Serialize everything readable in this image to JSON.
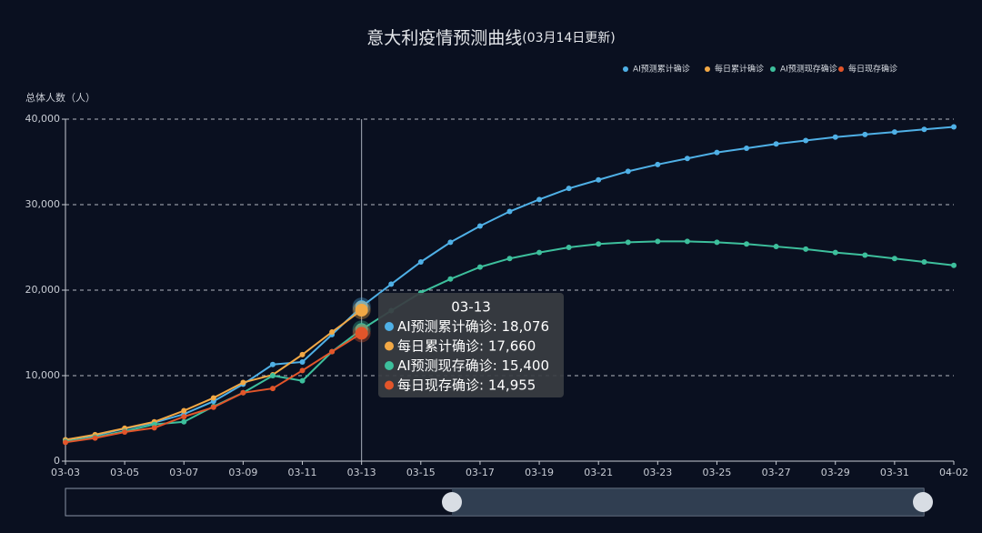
{
  "chart_data": {
    "type": "line",
    "title": "意大利疫情预测曲线",
    "subtitle": "(03月14日更新)",
    "y_label": "总体人数（人）",
    "categories": [
      "03-03",
      null,
      "03-05",
      null,
      "03-07",
      null,
      "03-09",
      null,
      "03-11",
      null,
      "03-13",
      null,
      "03-15",
      null,
      "03-17",
      null,
      "03-19",
      null,
      "03-21",
      null,
      "03-23",
      null,
      "03-25",
      null,
      "03-27",
      null,
      "03-29",
      null,
      "03-31",
      null,
      "04-02"
    ],
    "ylim": [
      0,
      40000
    ],
    "yticks": [
      0,
      {
        "value": 10000,
        "label": "10,000"
      },
      {
        "value": 20000,
        "label": "20,000"
      },
      {
        "value": 30000,
        "label": "30,000"
      },
      {
        "value": 40000,
        "label": "40,000"
      }
    ],
    "grid": true,
    "legend": "top-right",
    "series": [
      {
        "name": "AI预测累计确诊",
        "color": "#4fb0e6",
        "values": [
          2500,
          3000,
          3800,
          4500,
          5500,
          7000,
          9000,
          11300,
          11600,
          14800,
          18076,
          20700,
          23300,
          25600,
          27500,
          29200,
          30600,
          31900,
          32900,
          33900,
          34700,
          35400,
          36100,
          36600,
          37100,
          37500,
          37900,
          38200,
          38500,
          38800,
          39100
        ],
        "value_labels": [
          null,
          null,
          null,
          null,
          null,
          null,
          null,
          null,
          null,
          null,
          "18,076",
          null,
          null,
          null,
          null,
          null,
          null,
          null,
          null,
          null,
          null,
          null,
          null,
          null,
          null,
          null,
          null,
          null,
          null,
          null,
          null
        ]
      },
      {
        "name": "每日累计确诊",
        "color": "#f2a845",
        "values": [
          2500,
          3100,
          3850,
          4600,
          5900,
          7400,
          9200,
          10100,
          12460,
          15100,
          17660,
          null,
          null,
          null,
          null,
          null,
          null,
          null,
          null,
          null,
          null,
          null,
          null,
          null,
          null,
          null,
          null,
          null,
          null,
          null,
          null
        ],
        "value_labels": [
          null,
          null,
          null,
          null,
          null,
          null,
          null,
          null,
          null,
          null,
          "17,660",
          null,
          null,
          null,
          null,
          null,
          null,
          null,
          null,
          null,
          null,
          null,
          null,
          null,
          null,
          null,
          null,
          null,
          null,
          null,
          null
        ]
      },
      {
        "name": "AI预测现存确诊",
        "color": "#3dbf9c",
        "values": [
          2300,
          2800,
          3500,
          4300,
          4600,
          6400,
          8000,
          10000,
          9400,
          12800,
          15400,
          17600,
          19700,
          21300,
          22700,
          23700,
          24400,
          25000,
          25400,
          25600,
          25700,
          25700,
          25600,
          25400,
          25100,
          24800,
          24400,
          24100,
          23700,
          23300,
          22900
        ],
        "value_labels": [
          null,
          null,
          null,
          null,
          null,
          null,
          null,
          null,
          null,
          null,
          "15,400",
          null,
          null,
          null,
          null,
          null,
          null,
          null,
          null,
          null,
          null,
          null,
          null,
          null,
          null,
          null,
          null,
          null,
          null,
          null,
          null
        ]
      },
      {
        "name": "每日现存确诊",
        "color": "#e2552a",
        "values": [
          2200,
          2700,
          3400,
          3900,
          5200,
          6300,
          8000,
          8500,
          10600,
          12800,
          14955,
          null,
          null,
          null,
          null,
          null,
          null,
          null,
          null,
          null,
          null,
          null,
          null,
          null,
          null,
          null,
          null,
          null,
          null,
          null,
          null
        ],
        "value_labels": [
          null,
          null,
          null,
          null,
          null,
          null,
          null,
          null,
          null,
          null,
          "14,955",
          null,
          null,
          null,
          null,
          null,
          null,
          null,
          null,
          null,
          null,
          null,
          null,
          null,
          null,
          null,
          null,
          null,
          null,
          null,
          null
        ]
      }
    ]
  }
}
